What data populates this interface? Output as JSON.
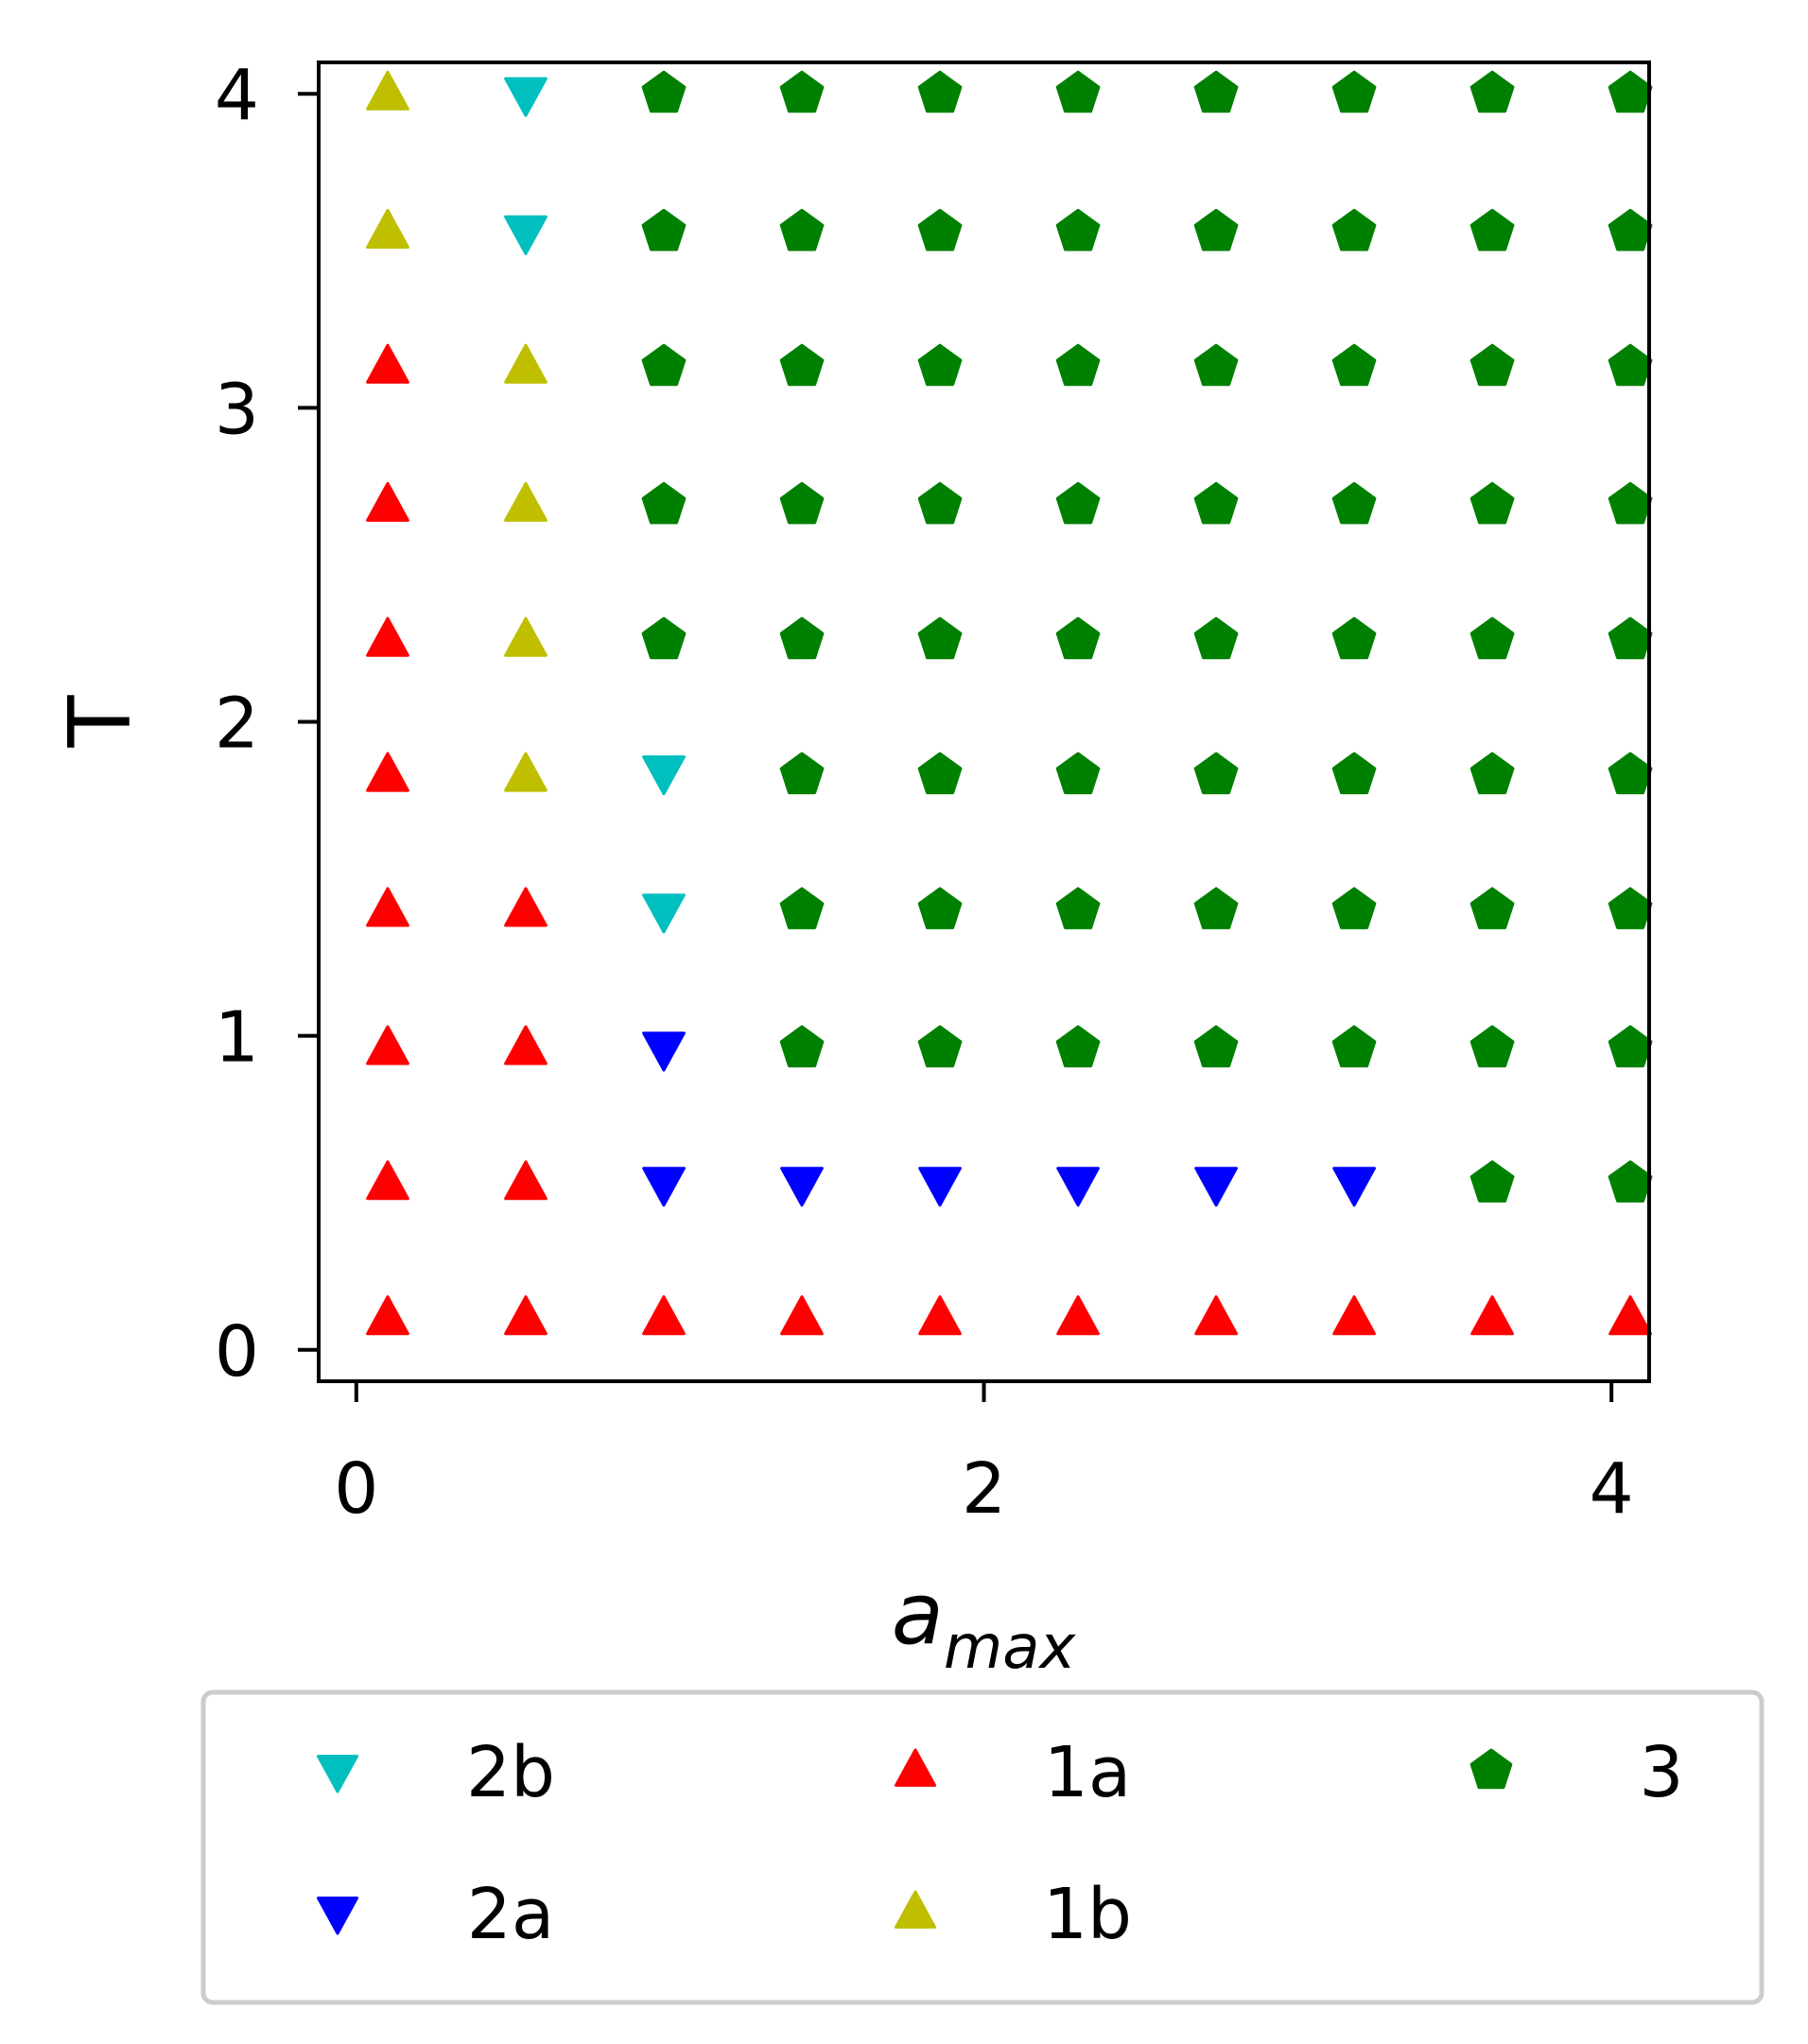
{
  "chart_data": {
    "type": "scatter",
    "xlabel": {
      "base": "a",
      "sub": "max"
    },
    "ylabel": "T",
    "xlim": [
      -0.12,
      4.12
    ],
    "ylim": [
      -0.1,
      4.1
    ],
    "xticks": [
      "0",
      "2",
      "4"
    ],
    "yticks": [
      "0",
      "1",
      "2",
      "3",
      "4"
    ],
    "grid": false,
    "legend_placement": "below",
    "x": [
      0.1,
      0.54,
      0.98,
      1.42,
      1.86,
      2.3,
      2.74,
      3.18,
      3.62,
      4.06
    ],
    "y": [
      0.1,
      0.54,
      0.98,
      1.42,
      1.86,
      2.3,
      2.74,
      3.18,
      3.62,
      4.06
    ],
    "series": [
      {
        "name": "2b",
        "marker": "triangle-down",
        "color": "#00bfbf",
        "points": [
          [
            0.54,
            4.0
          ],
          [
            0.54,
            3.56
          ],
          [
            0.98,
            1.84
          ],
          [
            0.98,
            1.4
          ]
        ]
      },
      {
        "name": "2a",
        "marker": "triangle-down",
        "color": "#0000ff",
        "points": [
          [
            0.98,
            0.96
          ],
          [
            0.98,
            0.53
          ],
          [
            1.42,
            0.53
          ],
          [
            1.86,
            0.53
          ],
          [
            2.3,
            0.53
          ],
          [
            2.74,
            0.53
          ],
          [
            3.18,
            0.53
          ]
        ]
      },
      {
        "name": "1a",
        "marker": "triangle-up",
        "color": "#ff0000",
        "points": [
          [
            0.1,
            3.13
          ],
          [
            0.1,
            2.69
          ],
          [
            0.1,
            2.26
          ],
          [
            0.1,
            1.83
          ],
          [
            0.1,
            1.4
          ],
          [
            0.1,
            0.96
          ],
          [
            0.1,
            0.53
          ],
          [
            0.54,
            1.4
          ],
          [
            0.54,
            0.96
          ],
          [
            0.54,
            0.53
          ],
          [
            0.1,
            0.1
          ],
          [
            0.54,
            0.1
          ],
          [
            0.98,
            0.1
          ],
          [
            1.42,
            0.1
          ],
          [
            1.86,
            0.1
          ],
          [
            2.3,
            0.1
          ],
          [
            2.74,
            0.1
          ],
          [
            3.18,
            0.1
          ],
          [
            3.62,
            0.1
          ],
          [
            4.06,
            0.1
          ]
        ]
      },
      {
        "name": "1b",
        "marker": "triangle-up",
        "color": "#bfbf00",
        "points": [
          [
            0.1,
            4.0
          ],
          [
            0.1,
            3.56
          ],
          [
            0.54,
            3.13
          ],
          [
            0.54,
            2.69
          ],
          [
            0.54,
            2.26
          ],
          [
            0.54,
            1.83
          ]
        ]
      },
      {
        "name": "3",
        "marker": "pentagon",
        "color": "#008000",
        "points": [
          [
            0.98,
            4.0
          ],
          [
            1.42,
            4.0
          ],
          [
            1.86,
            4.0
          ],
          [
            2.3,
            4.0
          ],
          [
            2.74,
            4.0
          ],
          [
            3.18,
            4.0
          ],
          [
            3.62,
            4.0
          ],
          [
            4.06,
            4.0
          ],
          [
            0.98,
            3.56
          ],
          [
            1.42,
            3.56
          ],
          [
            1.86,
            3.56
          ],
          [
            2.3,
            3.56
          ],
          [
            2.74,
            3.56
          ],
          [
            3.18,
            3.56
          ],
          [
            3.62,
            3.56
          ],
          [
            4.06,
            3.56
          ],
          [
            0.98,
            3.13
          ],
          [
            1.42,
            3.13
          ],
          [
            1.86,
            3.13
          ],
          [
            2.3,
            3.13
          ],
          [
            2.74,
            3.13
          ],
          [
            3.18,
            3.13
          ],
          [
            3.62,
            3.13
          ],
          [
            4.06,
            3.13
          ],
          [
            0.98,
            2.69
          ],
          [
            1.42,
            2.69
          ],
          [
            1.86,
            2.69
          ],
          [
            2.3,
            2.69
          ],
          [
            2.74,
            2.69
          ],
          [
            3.18,
            2.69
          ],
          [
            3.62,
            2.69
          ],
          [
            4.06,
            2.69
          ],
          [
            0.98,
            2.26
          ],
          [
            1.42,
            2.26
          ],
          [
            1.86,
            2.26
          ],
          [
            2.3,
            2.26
          ],
          [
            2.74,
            2.26
          ],
          [
            3.18,
            2.26
          ],
          [
            3.62,
            2.26
          ],
          [
            4.06,
            2.26
          ],
          [
            1.42,
            1.83
          ],
          [
            1.86,
            1.83
          ],
          [
            2.3,
            1.83
          ],
          [
            2.74,
            1.83
          ],
          [
            3.18,
            1.83
          ],
          [
            3.62,
            1.83
          ],
          [
            4.06,
            1.83
          ],
          [
            1.42,
            1.4
          ],
          [
            1.86,
            1.4
          ],
          [
            2.3,
            1.4
          ],
          [
            2.74,
            1.4
          ],
          [
            3.18,
            1.4
          ],
          [
            3.62,
            1.4
          ],
          [
            4.06,
            1.4
          ],
          [
            1.42,
            0.96
          ],
          [
            1.86,
            0.96
          ],
          [
            2.3,
            0.96
          ],
          [
            2.74,
            0.96
          ],
          [
            3.18,
            0.96
          ],
          [
            3.62,
            0.96
          ],
          [
            4.06,
            0.96
          ],
          [
            3.62,
            0.53
          ],
          [
            4.06,
            0.53
          ]
        ]
      }
    ]
  }
}
